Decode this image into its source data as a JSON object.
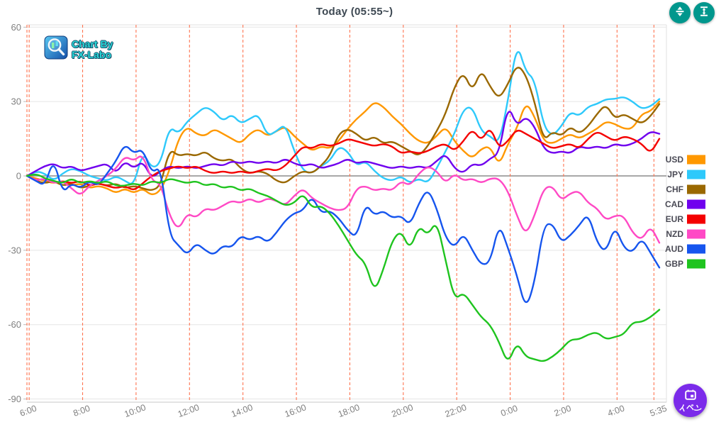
{
  "header": {
    "title": "Today  (05:55~)"
  },
  "watermark": {
    "line1": "Chart By",
    "line2": "FX-Labo"
  },
  "toolbar": {
    "button1_icon": "expand-divide-vertical",
    "button2_icon": "fit-height",
    "button_color": "#00978d"
  },
  "event_button": {
    "label_chars": [
      "イ",
      "ベ",
      "ン"
    ],
    "color": "#7b2bea",
    "icon": "calendar"
  },
  "colors": {
    "dashed_gridline": "#ff7450",
    "light_gridline": "#e8e8e8",
    "zero_line": "#9c9c9c",
    "border": "#e0e0e0",
    "axis_text": "#808080",
    "legend_text": "#4a4a55"
  },
  "chart_data": {
    "type": "line",
    "title": "Today  (05:55~)",
    "xlabel": "",
    "ylabel": "",
    "ylim": [
      -91,
      61
    ],
    "y_ticks": [
      60,
      30,
      0,
      -30,
      -60,
      -90
    ],
    "x_start_label": "5:55",
    "x_tick_labels": [
      "6:00",
      "8:00",
      "10:00",
      "12:00",
      "14:00",
      "16:00",
      "18:00",
      "20:00",
      "22:00",
      "0:00",
      "2:00",
      "4:00",
      "5:35"
    ],
    "x_tick_hours": [
      6,
      8,
      10,
      12,
      14,
      16,
      18,
      20,
      22,
      24,
      26,
      28,
      29.5833
    ],
    "time_range_hours": [
      5.9167,
      29.5833
    ],
    "sample_interval_minutes": 20,
    "grid": "horizontal-light, vertical-red-dashed",
    "legend_position": "right",
    "series": [
      {
        "name": "USD",
        "color": "#ff9800",
        "values": [
          0,
          -1,
          -2,
          -3,
          -2,
          -4,
          -3,
          -5,
          -4,
          -5,
          -7,
          -5,
          -7,
          -5,
          -8,
          -6,
          2,
          15,
          20,
          17,
          16,
          19,
          17,
          15,
          13,
          17,
          19,
          16,
          18,
          20,
          16,
          13,
          10,
          12,
          11,
          14,
          19,
          23,
          26,
          30,
          28,
          24,
          21,
          17,
          14,
          13,
          16,
          20,
          14,
          10,
          7,
          11,
          12,
          4,
          13,
          19,
          30,
          24,
          14,
          13,
          15,
          17,
          15,
          17,
          19,
          22,
          21,
          19,
          19,
          25,
          26,
          30
        ]
      },
      {
        "name": "JPY",
        "color": "#2ec9fb",
        "values": [
          0,
          2,
          1,
          -2,
          1,
          3,
          2,
          0,
          -1,
          -2,
          0,
          -2,
          -4,
          10,
          3,
          5,
          20,
          17,
          22,
          25,
          28,
          26,
          22,
          25,
          21,
          23,
          25,
          16,
          18,
          21,
          10,
          2,
          1,
          4,
          6,
          12,
          10,
          4,
          6,
          2,
          -1,
          -2,
          0,
          -3,
          -1,
          -3,
          3,
          10,
          17,
          27,
          28,
          18,
          16,
          13,
          30,
          54,
          42,
          39,
          20,
          16,
          20,
          26,
          24,
          28,
          29,
          31,
          31,
          32,
          30,
          27,
          28,
          31
        ]
      },
      {
        "name": "CHF",
        "color": "#9a6800",
        "values": [
          0,
          -2,
          -3,
          -2,
          -4,
          -3,
          -5,
          -4,
          -3,
          -4,
          -3,
          -5,
          -4,
          -5,
          -6,
          -4,
          11,
          8,
          9,
          8,
          10,
          7,
          6,
          7,
          3,
          1,
          2,
          1,
          -2,
          -3,
          0,
          2,
          1,
          4,
          8,
          17,
          19,
          17,
          14,
          16,
          13,
          14,
          12,
          10,
          8,
          12,
          18,
          25,
          36,
          42,
          34,
          43,
          36,
          31,
          37,
          45,
          41,
          30,
          14,
          18,
          16,
          20,
          17,
          20,
          25,
          29,
          23,
          25,
          23,
          21,
          24,
          29
        ]
      },
      {
        "name": "CAD",
        "color": "#7000ee",
        "values": [
          0,
          2,
          4,
          5,
          3,
          4,
          2,
          3,
          4,
          5,
          1,
          6,
          3,
          6,
          -1,
          2,
          4,
          3,
          4,
          3,
          4,
          5,
          4,
          6,
          5,
          6,
          5,
          6,
          5,
          7,
          5,
          4,
          5,
          3,
          4,
          5,
          7,
          5,
          6,
          5,
          4,
          3,
          4,
          3,
          4,
          3,
          6,
          9,
          3,
          1,
          5,
          4,
          7,
          9,
          29,
          20,
          24,
          20,
          11,
          9,
          10,
          9,
          12,
          11,
          12,
          11,
          13,
          12,
          13,
          15,
          18,
          17
        ]
      },
      {
        "name": "EUR",
        "color": "#f40000",
        "values": [
          0,
          -2,
          -1,
          -3,
          -2,
          -3,
          -2,
          -4,
          -3,
          -4,
          -5,
          -4,
          -6,
          -3,
          0,
          2,
          3,
          4,
          3,
          4,
          2,
          1,
          2,
          1,
          2,
          1,
          2,
          3,
          2,
          4,
          8,
          12,
          11,
          13,
          12,
          13,
          15,
          14,
          13,
          12,
          13,
          12,
          9,
          10,
          9,
          10,
          12,
          13,
          10,
          14,
          19,
          14,
          20,
          11,
          14,
          19,
          17,
          15,
          13,
          11,
          12,
          13,
          11,
          15,
          18,
          16,
          14,
          16,
          15,
          13,
          9,
          15
        ]
      },
      {
        "name": "NZD",
        "color": "#ff49c5",
        "values": [
          0,
          -2,
          -1,
          -3,
          -2,
          -5,
          -8,
          -4,
          -2,
          0,
          3,
          8,
          6,
          9,
          -2,
          -3,
          -16,
          -22,
          -15,
          -17,
          -13,
          -14,
          -12,
          -10,
          -11,
          -9,
          -11,
          -9,
          -10,
          -12,
          -8,
          -5,
          -9,
          -11,
          -13,
          -14,
          -13,
          -5,
          -4,
          -6,
          -5,
          -6,
          -2,
          -4,
          1,
          4,
          2,
          -3,
          1,
          -2,
          -1,
          -3,
          -1,
          -1,
          -6,
          -16,
          -24,
          -16,
          -5,
          -4,
          -10,
          -7,
          -6,
          -11,
          -13,
          -18,
          -16,
          -16,
          -23,
          -26,
          -20,
          -27
        ]
      },
      {
        "name": "AUD",
        "color": "#1655ee",
        "values": [
          0,
          -2,
          -4,
          7,
          -7,
          -3,
          -5,
          -2,
          -4,
          1,
          6,
          13,
          9,
          11,
          1,
          4,
          -24,
          -28,
          -32,
          -27,
          -30,
          -32,
          -28,
          -29,
          -24,
          -26,
          -24,
          -27,
          -23,
          -18,
          -15,
          -14,
          -8,
          -15,
          -14,
          -17,
          -22,
          -25,
          -11,
          -16,
          -14,
          -17,
          -16,
          -20,
          -11,
          -5,
          -13,
          -25,
          -29,
          -23,
          -30,
          -36,
          -35,
          -19,
          -29,
          -40,
          -54,
          -43,
          -20,
          -19,
          -27,
          -24,
          -20,
          -15,
          -27,
          -31,
          -20,
          -29,
          -31,
          -25,
          -31,
          -37
        ]
      },
      {
        "name": "GBP",
        "color": "#1fc41f",
        "values": [
          0,
          1,
          -1,
          -2,
          -3,
          -1,
          -3,
          -2,
          -3,
          -2,
          -4,
          -4,
          -3,
          -4,
          -2,
          -3,
          -1,
          -2,
          -3,
          -2,
          -4,
          -3,
          -5,
          -4,
          -6,
          -5,
          -7,
          -8,
          -10,
          -12,
          -11,
          -7,
          -13,
          -12,
          -15,
          -20,
          -26,
          -32,
          -35,
          -47,
          -38,
          -26,
          -22,
          -30,
          -20,
          -24,
          -18,
          -34,
          -50,
          -47,
          -52,
          -57,
          -60,
          -67,
          -76,
          -67,
          -73,
          -74,
          -75,
          -73,
          -70,
          -66,
          -66,
          -64,
          -63,
          -66,
          -65,
          -64,
          -59,
          -59,
          -57,
          -54
        ]
      }
    ]
  }
}
